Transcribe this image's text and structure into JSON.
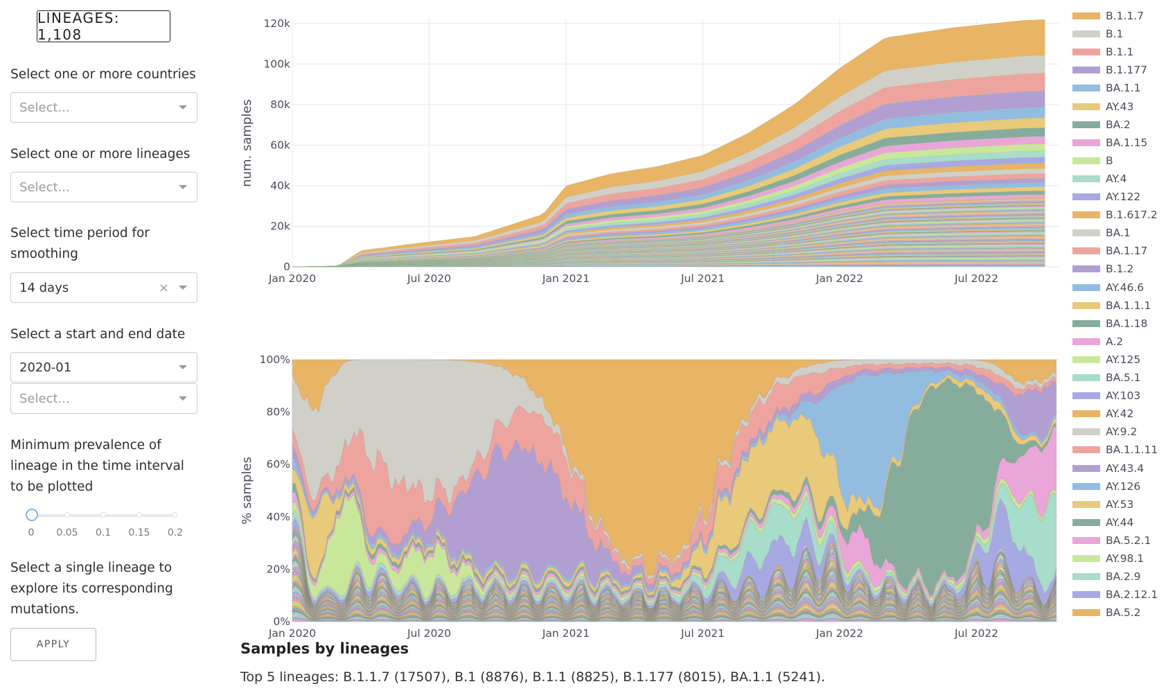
{
  "sidebar": {
    "badge": "LINEAGES: 1,108",
    "countries_label": "Select one or more countries",
    "countries_placeholder": "Select...",
    "lineages_label": "Select one or more lineages",
    "lineages_placeholder": "Select...",
    "smoothing_label": "Select time period for smoothing",
    "smoothing_value": "14 days",
    "clear_glyph": "×",
    "dates_label": "Select a start and end date",
    "start_date_value": "2020-01",
    "end_date_placeholder": "Select...",
    "prevalence_label": "Minimum prevalence of lineage in the time interval to be plotted",
    "slider": {
      "value": 0,
      "min": 0,
      "max": 0.2,
      "marks": [
        "0",
        "0.05",
        "0.1",
        "0.15",
        "0.2"
      ]
    },
    "single_lineage_label": "Select a single lineage to explore its corresponding mutations.",
    "apply_label": "APPLY"
  },
  "summary": {
    "title": "Samples by lineages",
    "text": "Top 5 lineages: B.1.1.7 (17507), B.1 (8876), B.1.1 (8825), B.1.177 (8015), BA.1.1 (5241)."
  },
  "chart_data": [
    {
      "type": "area",
      "stacked": true,
      "ylabel": "num. samples",
      "x_ticks": [
        "Jan 2020",
        "Jul 2020",
        "Jan 2021",
        "Jul 2021",
        "Jan 2022",
        "Jul 2022"
      ],
      "y_ticks": [
        "0",
        "20k",
        "40k",
        "60k",
        "80k",
        "100k",
        "120k"
      ],
      "ylim": [
        0,
        122000
      ],
      "x": [
        "2020-01",
        "2020-03",
        "2020-04",
        "2020-06",
        "2020-09",
        "2020-12",
        "2021-01",
        "2021-03",
        "2021-05",
        "2021-07",
        "2021-09",
        "2021-11",
        "2022-01",
        "2022-03",
        "2022-06",
        "2022-09",
        "2022-10"
      ],
      "total": [
        0,
        500,
        8000,
        11000,
        15000,
        26000,
        40000,
        46000,
        49500,
        55000,
        66000,
        80000,
        98000,
        113000,
        118000,
        121500,
        122000
      ],
      "series_order_top_to_bottom": [
        "B.1.1.7",
        "B.1",
        "B.1.1",
        "B.1.177",
        "BA.1.1",
        "AY.43",
        "BA.2",
        "BA.1.15",
        "B",
        "AY.4",
        "AY.122",
        "B.1.617.2"
      ],
      "top_layers_final": [
        {
          "name": "B.1.1.7",
          "value": 17507
        },
        {
          "name": "B.1",
          "value": 8876
        },
        {
          "name": "B.1.1",
          "value": 8825
        },
        {
          "name": "B.1.177",
          "value": 8015
        },
        {
          "name": "BA.1.1",
          "value": 5241
        }
      ],
      "grid": true
    },
    {
      "type": "area",
      "stacked": true,
      "normalized": true,
      "ylabel": "% samples",
      "x_ticks": [
        "Jan 2020",
        "Jul 2020",
        "Jan 2021",
        "Jul 2021",
        "Jan 2022",
        "Jul 2022"
      ],
      "y_ticks": [
        "0%",
        "20%",
        "40%",
        "60%",
        "80%",
        "100%"
      ],
      "ylim": [
        0,
        100
      ],
      "grid": true
    }
  ],
  "legend": {
    "placement": "right",
    "items": [
      {
        "name": "B.1.1.7",
        "color": "#e8b465"
      },
      {
        "name": "B.1",
        "color": "#d0d0c8"
      },
      {
        "name": "B.1.1",
        "color": "#eea49e"
      },
      {
        "name": "B.1.177",
        "color": "#b29fd2"
      },
      {
        "name": "BA.1.1",
        "color": "#93bde0"
      },
      {
        "name": "AY.43",
        "color": "#e8ca7a"
      },
      {
        "name": "BA.2",
        "color": "#86ad9b"
      },
      {
        "name": "BA.1.15",
        "color": "#eaa6d8"
      },
      {
        "name": "B",
        "color": "#c9e79a"
      },
      {
        "name": "AY.4",
        "color": "#a8dccb"
      },
      {
        "name": "AY.122",
        "color": "#a7a9e3"
      },
      {
        "name": "B.1.617.2",
        "color": "#e8b465"
      },
      {
        "name": "BA.1",
        "color": "#d0d0c8"
      },
      {
        "name": "BA.1.17",
        "color": "#eea49e"
      },
      {
        "name": "B.1.2",
        "color": "#b29fd2"
      },
      {
        "name": "AY.46.6",
        "color": "#93bde0"
      },
      {
        "name": "BA.1.1.1",
        "color": "#e8ca7a"
      },
      {
        "name": "BA.1.18",
        "color": "#86ad9b"
      },
      {
        "name": "A.2",
        "color": "#eaa6d8"
      },
      {
        "name": "AY.125",
        "color": "#c9e79a"
      },
      {
        "name": "BA.5.1",
        "color": "#a8dccb"
      },
      {
        "name": "AY.103",
        "color": "#a7a9e3"
      },
      {
        "name": "AY.42",
        "color": "#e8b465"
      },
      {
        "name": "AY.9.2",
        "color": "#d0d0c8"
      },
      {
        "name": "BA.1.1.11",
        "color": "#eea49e"
      },
      {
        "name": "AY.43.4",
        "color": "#b29fd2"
      },
      {
        "name": "AY.126",
        "color": "#93bde0"
      },
      {
        "name": "AY.53",
        "color": "#e8ca7a"
      },
      {
        "name": "AY.44",
        "color": "#86ad9b"
      },
      {
        "name": "BA.5.2.1",
        "color": "#eaa6d8"
      },
      {
        "name": "AY.98.1",
        "color": "#c9e79a"
      },
      {
        "name": "BA.2.9",
        "color": "#a8dccb"
      },
      {
        "name": "BA.2.12.1",
        "color": "#a7a9e3"
      },
      {
        "name": "BA.5.2",
        "color": "#e8b465"
      }
    ]
  }
}
